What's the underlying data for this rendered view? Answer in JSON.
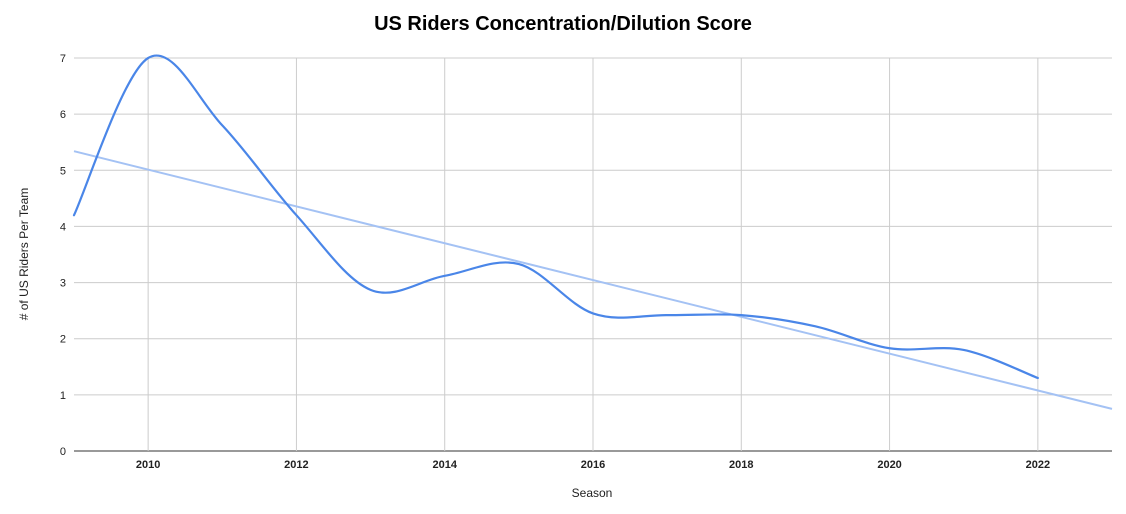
{
  "chart_data": {
    "type": "line",
    "title": "US Riders Concentration/Dilution Score",
    "xlabel": "Season",
    "ylabel": "# of US Riders Per Team",
    "xlim": [
      2009,
      2023
    ],
    "ylim": [
      0,
      7
    ],
    "x_ticks": [
      2010,
      2012,
      2014,
      2016,
      2018,
      2020,
      2022
    ],
    "y_ticks": [
      0,
      1,
      2,
      3,
      4,
      5,
      6,
      7
    ],
    "grid": true,
    "legend": "none",
    "series": [
      {
        "color": "#4a86e8",
        "smooth": true,
        "x": [
          2009,
          2010,
          2011,
          2012,
          2013,
          2014,
          2015,
          2016,
          2017,
          2018,
          2019,
          2020,
          2021,
          2022
        ],
        "y": [
          4.2,
          7.0,
          5.8,
          4.2,
          2.87,
          3.12,
          3.33,
          2.45,
          2.42,
          2.42,
          2.22,
          1.83,
          1.8,
          1.3
        ]
      }
    ],
    "trendline": {
      "type": "linear",
      "color": "#a4c2f4",
      "x": [
        2009,
        2023
      ],
      "y": [
        5.34,
        0.75
      ]
    }
  }
}
